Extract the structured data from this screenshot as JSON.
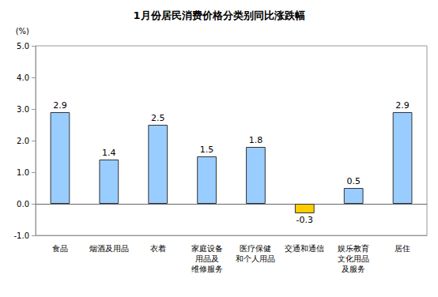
{
  "chart_data": {
    "type": "bar",
    "title": "1月份居民消费价格分类别同比涨跌幅",
    "ylabel": "(%)",
    "categories": [
      "食品",
      "烟酒及用品",
      "衣着",
      "家庭设备\n用品及\n维修服务",
      "医疗保健\n和个人用品",
      "交通和通信",
      "娱乐教育\n文化用品\n及服务",
      "居住"
    ],
    "values": [
      2.9,
      1.4,
      2.5,
      1.5,
      1.8,
      -0.3,
      0.5,
      2.9
    ],
    "colors": [
      "#99ccff",
      "#99ccff",
      "#99ccff",
      "#99ccff",
      "#99ccff",
      "#ffcc00",
      "#99ccff",
      "#99ccff"
    ],
    "ylim": [
      -1,
      5
    ],
    "yticks": [
      {
        "value": -1,
        "label": "-1.0"
      },
      {
        "value": 0,
        "label": "0.0"
      },
      {
        "value": 1,
        "label": "1.0"
      },
      {
        "value": 2,
        "label": "2.0"
      },
      {
        "value": 3,
        "label": "3.0"
      },
      {
        "value": 4,
        "label": "4.0"
      },
      {
        "value": 5,
        "label": "5.0"
      }
    ],
    "grid": false,
    "data_labels": true
  }
}
